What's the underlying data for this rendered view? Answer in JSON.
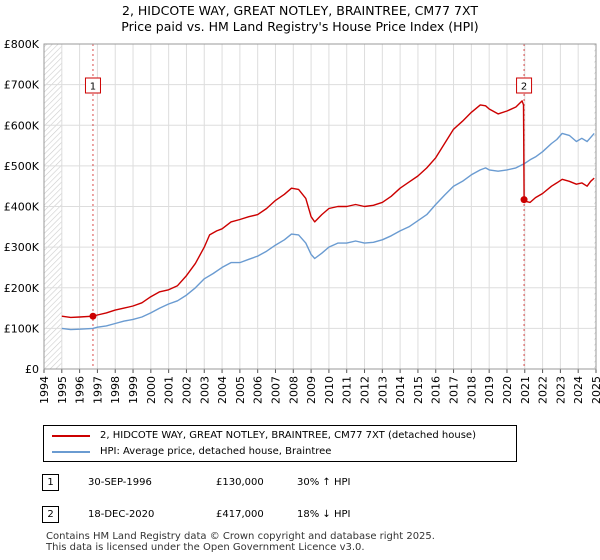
{
  "chart_data": {
    "type": "line",
    "title": [
      "2, HIDCOTE WAY, GREAT NOTLEY, BRAINTREE, CM77 7XT",
      "Price paid vs. HM Land Registry's House Price Index (HPI)"
    ],
    "xlabel": "",
    "ylabel": "",
    "xlim": [
      1994,
      2025
    ],
    "ylim": [
      0,
      800000
    ],
    "y_ticks": [
      {
        "value": 0,
        "label": "£0"
      },
      {
        "value": 100000,
        "label": "£100K"
      },
      {
        "value": 200000,
        "label": "£200K"
      },
      {
        "value": 300000,
        "label": "£300K"
      },
      {
        "value": 400000,
        "label": "£400K"
      },
      {
        "value": 500000,
        "label": "£500K"
      },
      {
        "value": 600000,
        "label": "£600K"
      },
      {
        "value": 700000,
        "label": "£700K"
      },
      {
        "value": 800000,
        "label": "£800K"
      }
    ],
    "x_ticks": [
      "1994",
      "1995",
      "1996",
      "1997",
      "1998",
      "1999",
      "2000",
      "2001",
      "2002",
      "2003",
      "2004",
      "2005",
      "2006",
      "2007",
      "2008",
      "2009",
      "2010",
      "2011",
      "2012",
      "2013",
      "2014",
      "2015",
      "2016",
      "2017",
      "2018",
      "2019",
      "2020",
      "2021",
      "2022",
      "2023",
      "2024",
      "2025"
    ],
    "grid": true,
    "series": [
      {
        "name": "2, HIDCOTE WAY, GREAT NOTLEY, BRAINTREE, CM77 7XT (detached house)",
        "color": "#cc0000",
        "points": [
          [
            1995.0,
            130000
          ],
          [
            1995.5,
            127000
          ],
          [
            1996.0,
            128000
          ],
          [
            1996.75,
            130000
          ],
          [
            1997.0,
            133000
          ],
          [
            1997.5,
            138000
          ],
          [
            1998.0,
            145000
          ],
          [
            1998.5,
            150000
          ],
          [
            1999.0,
            155000
          ],
          [
            1999.5,
            163000
          ],
          [
            2000.0,
            178000
          ],
          [
            2000.5,
            190000
          ],
          [
            2001.0,
            195000
          ],
          [
            2001.5,
            205000
          ],
          [
            2002.0,
            230000
          ],
          [
            2002.5,
            260000
          ],
          [
            2003.0,
            300000
          ],
          [
            2003.3,
            330000
          ],
          [
            2003.7,
            340000
          ],
          [
            2004.0,
            345000
          ],
          [
            2004.5,
            362000
          ],
          [
            2005.0,
            368000
          ],
          [
            2005.5,
            375000
          ],
          [
            2006.0,
            380000
          ],
          [
            2006.5,
            395000
          ],
          [
            2007.0,
            415000
          ],
          [
            2007.5,
            430000
          ],
          [
            2007.9,
            445000
          ],
          [
            2008.3,
            442000
          ],
          [
            2008.7,
            420000
          ],
          [
            2009.0,
            375000
          ],
          [
            2009.2,
            362000
          ],
          [
            2009.6,
            380000
          ],
          [
            2010.0,
            395000
          ],
          [
            2010.5,
            400000
          ],
          [
            2011.0,
            400000
          ],
          [
            2011.5,
            405000
          ],
          [
            2012.0,
            400000
          ],
          [
            2012.5,
            403000
          ],
          [
            2013.0,
            410000
          ],
          [
            2013.5,
            425000
          ],
          [
            2014.0,
            445000
          ],
          [
            2014.5,
            460000
          ],
          [
            2015.0,
            475000
          ],
          [
            2015.5,
            495000
          ],
          [
            2016.0,
            520000
          ],
          [
            2016.5,
            555000
          ],
          [
            2017.0,
            590000
          ],
          [
            2017.5,
            610000
          ],
          [
            2018.0,
            632000
          ],
          [
            2018.5,
            650000
          ],
          [
            2018.8,
            648000
          ],
          [
            2019.0,
            640000
          ],
          [
            2019.5,
            628000
          ],
          [
            2020.0,
            635000
          ],
          [
            2020.5,
            645000
          ],
          [
            2020.85,
            660000
          ],
          [
            2020.93,
            650000
          ],
          [
            2020.96,
            417000
          ],
          [
            2021.1,
            412000
          ],
          [
            2021.3,
            410000
          ],
          [
            2021.6,
            422000
          ],
          [
            2022.0,
            432000
          ],
          [
            2022.5,
            450000
          ],
          [
            2022.8,
            458000
          ],
          [
            2023.1,
            467000
          ],
          [
            2023.5,
            462000
          ],
          [
            2023.9,
            455000
          ],
          [
            2024.2,
            458000
          ],
          [
            2024.5,
            450000
          ],
          [
            2024.7,
            462000
          ],
          [
            2024.9,
            470000
          ]
        ]
      },
      {
        "name": "HPI: Average price, detached house, Braintree",
        "color": "#6a9bd1",
        "points": [
          [
            1995.0,
            100000
          ],
          [
            1995.5,
            97000
          ],
          [
            1996.0,
            98000
          ],
          [
            1996.75,
            100000
          ],
          [
            1997.0,
            103000
          ],
          [
            1997.5,
            106000
          ],
          [
            1998.0,
            112000
          ],
          [
            1998.5,
            118000
          ],
          [
            1999.0,
            122000
          ],
          [
            1999.5,
            128000
          ],
          [
            2000.0,
            138000
          ],
          [
            2000.5,
            150000
          ],
          [
            2001.0,
            160000
          ],
          [
            2001.5,
            168000
          ],
          [
            2002.0,
            182000
          ],
          [
            2002.5,
            200000
          ],
          [
            2003.0,
            222000
          ],
          [
            2003.5,
            235000
          ],
          [
            2004.0,
            250000
          ],
          [
            2004.5,
            262000
          ],
          [
            2005.0,
            262000
          ],
          [
            2005.5,
            270000
          ],
          [
            2006.0,
            278000
          ],
          [
            2006.5,
            290000
          ],
          [
            2007.0,
            305000
          ],
          [
            2007.5,
            318000
          ],
          [
            2007.9,
            332000
          ],
          [
            2008.3,
            330000
          ],
          [
            2008.7,
            310000
          ],
          [
            2009.0,
            282000
          ],
          [
            2009.2,
            272000
          ],
          [
            2009.6,
            285000
          ],
          [
            2010.0,
            300000
          ],
          [
            2010.5,
            310000
          ],
          [
            2011.0,
            310000
          ],
          [
            2011.5,
            315000
          ],
          [
            2012.0,
            310000
          ],
          [
            2012.5,
            312000
          ],
          [
            2013.0,
            318000
          ],
          [
            2013.5,
            328000
          ],
          [
            2014.0,
            340000
          ],
          [
            2014.5,
            350000
          ],
          [
            2015.0,
            365000
          ],
          [
            2015.5,
            380000
          ],
          [
            2016.0,
            405000
          ],
          [
            2016.5,
            428000
          ],
          [
            2017.0,
            450000
          ],
          [
            2017.5,
            462000
          ],
          [
            2018.0,
            478000
          ],
          [
            2018.5,
            490000
          ],
          [
            2018.8,
            495000
          ],
          [
            2019.0,
            490000
          ],
          [
            2019.5,
            487000
          ],
          [
            2020.0,
            490000
          ],
          [
            2020.5,
            495000
          ],
          [
            2020.96,
            505000
          ],
          [
            2021.3,
            515000
          ],
          [
            2021.6,
            522000
          ],
          [
            2022.0,
            535000
          ],
          [
            2022.5,
            555000
          ],
          [
            2022.8,
            565000
          ],
          [
            2023.1,
            580000
          ],
          [
            2023.5,
            575000
          ],
          [
            2023.9,
            560000
          ],
          [
            2024.2,
            568000
          ],
          [
            2024.5,
            560000
          ],
          [
            2024.7,
            570000
          ],
          [
            2024.9,
            580000
          ]
        ]
      }
    ],
    "annotations": [
      {
        "label": "1",
        "x": 1996.75,
        "y": 130000,
        "color": "#cc0000"
      },
      {
        "label": "2",
        "x": 2020.96,
        "y": 417000,
        "color": "#cc0000"
      }
    ],
    "hatched_ranges": [
      [
        1994,
        1995
      ],
      [
        2024.9,
        2025
      ]
    ]
  },
  "legend": [
    {
      "label": "2, HIDCOTE WAY, GREAT NOTLEY, BRAINTREE, CM77 7XT (detached house)",
      "color": "#cc0000"
    },
    {
      "label": "HPI: Average price, detached house, Braintree",
      "color": "#6a9bd1"
    }
  ],
  "sales": [
    {
      "num": "1",
      "date": "30-SEP-1996",
      "price": "£130,000",
      "hpi": "30% ↑ HPI"
    },
    {
      "num": "2",
      "date": "18-DEC-2020",
      "price": "£417,000",
      "hpi": "18% ↓ HPI"
    }
  ],
  "footer": [
    "Contains HM Land Registry data © Crown copyright and database right 2025.",
    "This data is licensed under the Open Government Licence v3.0."
  ]
}
